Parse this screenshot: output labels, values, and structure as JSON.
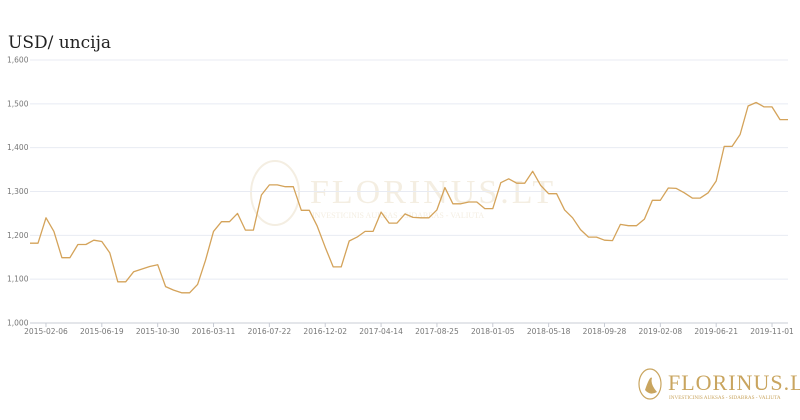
{
  "chart_data": {
    "type": "line",
    "title": "USD/ uncija",
    "xlabel": "",
    "ylabel": "",
    "ylim": [
      1000,
      1600
    ],
    "yticks": [
      "1,000",
      "1,100",
      "1,200",
      "1,300",
      "1,400",
      "1,500",
      "1,600"
    ],
    "xticks": [
      "2015-02-06",
      "2015-06-19",
      "2015-10-30",
      "2016-03-11",
      "2016-07-22",
      "2016-12-02",
      "2017-04-14",
      "2017-08-25",
      "2018-01-05",
      "2018-05-18",
      "2018-09-28",
      "2019-02-08",
      "2019-06-21",
      "2019-11-01"
    ],
    "grid": true,
    "line_color": "#d4a35a",
    "x": [
      "2014-12-30",
      "2015-01-18",
      "2015-02-06",
      "2015-02-25",
      "2015-03-16",
      "2015-04-04",
      "2015-04-23",
      "2015-05-12",
      "2015-05-31",
      "2015-06-19",
      "2015-07-08",
      "2015-07-27",
      "2015-08-15",
      "2015-09-03",
      "2015-09-22",
      "2015-10-11",
      "2015-10-30",
      "2015-11-18",
      "2015-12-07",
      "2015-12-26",
      "2016-01-14",
      "2016-02-02",
      "2016-02-21",
      "2016-03-11",
      "2016-03-30",
      "2016-04-18",
      "2016-05-07",
      "2016-05-26",
      "2016-06-14",
      "2016-07-03",
      "2016-07-22",
      "2016-08-10",
      "2016-08-29",
      "2016-09-17",
      "2016-10-06",
      "2016-10-25",
      "2016-11-13",
      "2016-12-02",
      "2016-12-21",
      "2017-01-09",
      "2017-01-28",
      "2017-02-16",
      "2017-03-07",
      "2017-03-26",
      "2017-04-14",
      "2017-05-03",
      "2017-05-22",
      "2017-06-10",
      "2017-06-29",
      "2017-07-18",
      "2017-08-06",
      "2017-08-25",
      "2017-09-13",
      "2017-10-02",
      "2017-10-21",
      "2017-11-09",
      "2017-11-28",
      "2017-12-17",
      "2018-01-05",
      "2018-01-24",
      "2018-02-12",
      "2018-03-03",
      "2018-03-22",
      "2018-04-10",
      "2018-04-29",
      "2018-05-18",
      "2018-06-06",
      "2018-06-25",
      "2018-07-14",
      "2018-08-02",
      "2018-08-21",
      "2018-09-09",
      "2018-09-28",
      "2018-10-17",
      "2018-11-05",
      "2018-11-24",
      "2018-12-13",
      "2019-01-01",
      "2019-01-20",
      "2019-02-08",
      "2019-02-27",
      "2019-03-18",
      "2019-04-06",
      "2019-04-25",
      "2019-05-14",
      "2019-06-02",
      "2019-06-21",
      "2019-07-10",
      "2019-07-29",
      "2019-08-17",
      "2019-09-05",
      "2019-09-24",
      "2019-10-13",
      "2019-11-01",
      "2019-11-20",
      "2019-12-09"
    ],
    "values": [
      1182,
      1182,
      1240,
      1209,
      1149,
      1149,
      1179,
      1179,
      1189,
      1186,
      1160,
      1094,
      1094,
      1117,
      1123,
      1129,
      1133,
      1083,
      1075,
      1069,
      1069,
      1088,
      1143,
      1209,
      1231,
      1231,
      1250,
      1212,
      1212,
      1292,
      1315,
      1315,
      1311,
      1311,
      1257,
      1257,
      1221,
      1173,
      1128,
      1128,
      1187,
      1196,
      1209,
      1209,
      1253,
      1228,
      1228,
      1249,
      1241,
      1240,
      1240,
      1258,
      1309,
      1272,
      1272,
      1276,
      1276,
      1261,
      1261,
      1320,
      1329,
      1319,
      1319,
      1346,
      1314,
      1295,
      1295,
      1258,
      1240,
      1213,
      1196,
      1196,
      1189,
      1188,
      1225,
      1222,
      1222,
      1237,
      1280,
      1280,
      1308,
      1307,
      1297,
      1285,
      1285,
      1297,
      1324,
      1403,
      1403,
      1430,
      1495,
      1503,
      1493,
      1493,
      1464,
      1464
    ]
  },
  "logo": {
    "name": "FLORINUS.LT",
    "tagline": "INVESTICINIS AUKSAS - SIDABRAS - VALIUTA"
  }
}
